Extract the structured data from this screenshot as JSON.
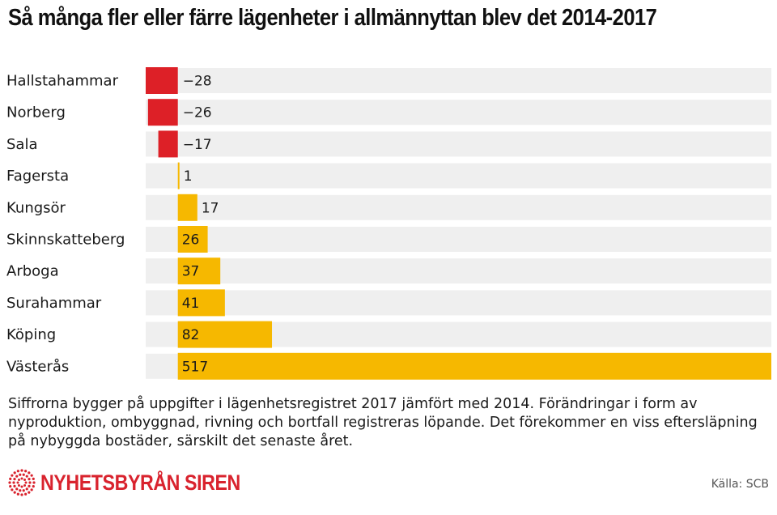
{
  "title": "Så många fler eller färre lägenheter i allmännyttan blev det 2014-2017",
  "chart_data": {
    "type": "bar",
    "orientation": "horizontal",
    "categories": [
      "Hallstahammar",
      "Norberg",
      "Sala",
      "Fagersta",
      "Kungsör",
      "Skinnskatteberg",
      "Arboga",
      "Surahammar",
      "Köping",
      "Västerås"
    ],
    "values": [
      -28,
      -26,
      -17,
      1,
      17,
      26,
      37,
      41,
      82,
      517
    ],
    "value_labels": [
      "−28",
      "−26",
      "−17",
      "1",
      "17",
      "26",
      "37",
      "41",
      "82",
      "517"
    ],
    "xlim": [
      -28,
      517
    ],
    "colors": {
      "negative": "#dd2027",
      "positive": "#f6b800",
      "track": "#efefef"
    }
  },
  "note": "Siffrorna bygger på uppgifter i lägenhetsregistret 2017 jämfört med 2014. Förändringar i form av nyproduktion, ombyggnad, rivning och bortfall registreras löpande. Det förekommer en viss eftersläpning på nybyggda bostäder, särskilt det senaste året.",
  "logo": {
    "text": "NYHETSBYRÅN SIREN",
    "color": "#d9232e"
  },
  "source": "Källa: SCB"
}
